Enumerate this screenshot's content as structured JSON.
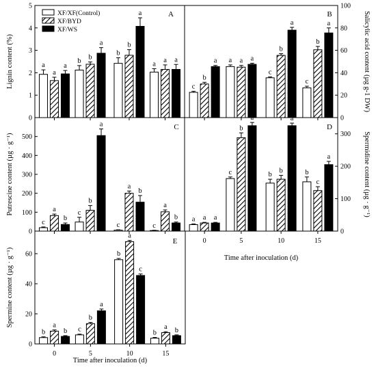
{
  "figure": {
    "legend": [
      {
        "label": "XF/XF(Control)",
        "style": "white"
      },
      {
        "label": "XF/BYD",
        "style": "hatched"
      },
      {
        "label": "XF/WS",
        "style": "black"
      }
    ],
    "xlabel": "Time after inoculation (d)"
  },
  "chart_data": [
    {
      "panel": "A",
      "type": "bar",
      "ylabel": "Lignin content (%)",
      "ylim": [
        0,
        5
      ],
      "yticks": [
        0,
        1,
        2,
        3,
        4,
        5
      ],
      "categories": [
        "0",
        "5",
        "10",
        "15"
      ],
      "show_xticklabels": false,
      "series": [
        {
          "name": "XF/XF(Control)",
          "values": [
            1.93,
            2.12,
            2.42,
            2.03
          ],
          "errors": [
            0.2,
            0.2,
            0.25,
            0.15
          ],
          "letters": [
            "a",
            "b",
            "b",
            "a"
          ]
        },
        {
          "name": "XF/BYD",
          "values": [
            1.65,
            2.38,
            2.78,
            2.15
          ],
          "errors": [
            0.15,
            0.1,
            0.25,
            0.2
          ],
          "letters": [
            "a",
            "b",
            "b",
            "a"
          ]
        },
        {
          "name": "XF/WS",
          "values": [
            1.95,
            2.87,
            4.07,
            2.15
          ],
          "errors": [
            0.15,
            0.25,
            0.38,
            0.22
          ],
          "letters": [
            "a",
            "a",
            "a",
            "a"
          ]
        }
      ]
    },
    {
      "panel": "B",
      "type": "bar",
      "ylabel": "Salicylic acid content (µg g-1 DW)",
      "ylim": [
        0,
        100
      ],
      "yticks": [
        0,
        20,
        40,
        60,
        80,
        100
      ],
      "categories": [
        "0",
        "5",
        "10",
        "15"
      ],
      "show_xticklabels": false,
      "series": [
        {
          "name": "XF/XF(Control)",
          "values": [
            22.5,
            45.5,
            35.5,
            26.5
          ],
          "errors": [
            1.0,
            1.5,
            0.8,
            1.5
          ],
          "letters": [
            "c",
            "a",
            "c",
            "c"
          ]
        },
        {
          "name": "XF/BYD",
          "values": [
            30,
            45,
            55.5,
            60.5
          ],
          "errors": [
            1.5,
            1.5,
            1.5,
            3.0
          ],
          "letters": [
            "b",
            "a",
            "b",
            "b"
          ]
        },
        {
          "name": "XF/WS",
          "values": [
            45.5,
            47.5,
            78,
            75.5
          ],
          "errors": [
            1.0,
            1.0,
            2.5,
            4.5
          ],
          "letters": [
            "a",
            "a",
            "a",
            "a"
          ]
        }
      ]
    },
    {
      "panel": "C",
      "type": "bar",
      "ylabel": "Putrescine content (µg · g⁻¹)",
      "ylim": [
        0,
        600
      ],
      "yticks": [
        0,
        100,
        200,
        300,
        400,
        500
      ],
      "categories": [
        "0",
        "5",
        "10",
        "15"
      ],
      "show_xticklabels": false,
      "series": [
        {
          "name": "XF/XF(Control)",
          "values": [
            18,
            48,
            5,
            3
          ],
          "errors": [
            4,
            25,
            2,
            1.5
          ],
          "letters": [
            "c",
            "c",
            "c",
            "c"
          ]
        },
        {
          "name": "XF/BYD",
          "values": [
            82,
            110,
            200,
            102
          ],
          "errors": [
            8,
            25,
            12,
            10
          ],
          "letters": [
            "a",
            "b",
            "a",
            "a"
          ]
        },
        {
          "name": "XF/WS",
          "values": [
            35,
            505,
            153,
            43
          ],
          "errors": [
            8,
            35,
            35,
            5
          ],
          "letters": [
            "b",
            "a",
            "b",
            "b"
          ]
        }
      ]
    },
    {
      "panel": "D",
      "type": "bar",
      "ylabel": "Spermidine content (µg · g⁻¹)",
      "ylim": [
        0,
        350
      ],
      "yticks": [
        0,
        100,
        200,
        300
      ],
      "categories": [
        "0",
        "5",
        "10",
        "15"
      ],
      "show_xticklabels": true,
      "series": [
        {
          "name": "XF/XF(Control)",
          "values": [
            20,
            162,
            148,
            152
          ],
          "errors": [
            2,
            5,
            12,
            15
          ],
          "letters": [
            "a",
            "c",
            "b",
            "b"
          ]
        },
        {
          "name": "XF/BYD",
          "values": [
            25,
            288,
            160,
            125
          ],
          "errors": [
            2,
            15,
            12,
            12
          ],
          "letters": [
            "a",
            "b",
            "b",
            "c"
          ]
        },
        {
          "name": "XF/WS",
          "values": [
            25,
            325,
            325,
            205
          ],
          "errors": [
            2,
            10,
            8,
            10
          ],
          "letters": [
            "a",
            "a",
            "a",
            "a"
          ]
        }
      ]
    },
    {
      "panel": "E",
      "type": "bar",
      "ylabel": "Spermine content (µg · g⁻¹)",
      "ylim": [
        0,
        75
      ],
      "yticks": [
        0,
        20,
        40,
        60
      ],
      "categories": [
        "0",
        "5",
        "10",
        "15"
      ],
      "show_xticklabels": true,
      "series": [
        {
          "name": "XF/XF(Control)",
          "values": [
            4.2,
            6,
            56,
            3.8
          ],
          "errors": [
            0.5,
            0.5,
            0.8,
            0.5
          ],
          "letters": [
            "b",
            "c",
            "b",
            "b"
          ]
        },
        {
          "name": "XF/BYD",
          "values": [
            8.5,
            13.5,
            68,
            7.5
          ],
          "errors": [
            0.8,
            0.8,
            0.8,
            0.6
          ],
          "letters": [
            "a",
            "b",
            "a",
            "a"
          ]
        },
        {
          "name": "XF/WS",
          "values": [
            5,
            22,
            45.5,
            5.5
          ],
          "errors": [
            0.5,
            1.2,
            1.0,
            0.5
          ],
          "letters": [
            "b",
            "a",
            "c",
            "b"
          ]
        }
      ]
    }
  ]
}
